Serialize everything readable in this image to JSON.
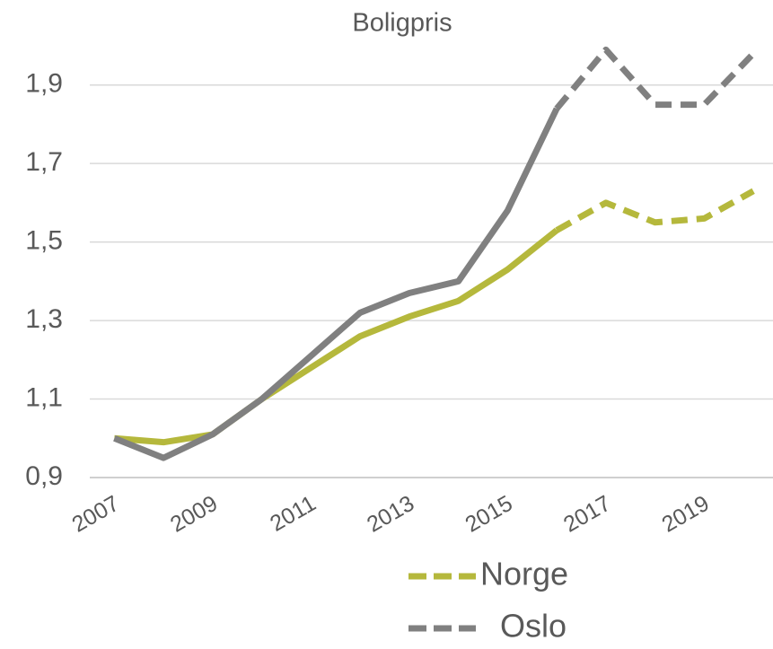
{
  "chart_data": {
    "type": "line",
    "title": "Boligpris",
    "x": [
      2007,
      2008,
      2009,
      2010,
      2011,
      2012,
      2013,
      2014,
      2015,
      2016,
      2017,
      2018,
      2019,
      2020
    ],
    "xlim": [
      2006.5,
      2020.4
    ],
    "xticks": [
      2007,
      2009,
      2011,
      2013,
      2015,
      2017,
      2019
    ],
    "ylim": [
      0.9,
      2.0
    ],
    "yticks": [
      {
        "value": 0.9,
        "label": "0,9"
      },
      {
        "value": 1.1,
        "label": "1,1"
      },
      {
        "value": 1.3,
        "label": "1,3"
      },
      {
        "value": 1.5,
        "label": "1,5"
      },
      {
        "value": 1.7,
        "label": "1,7"
      },
      {
        "value": 1.9,
        "label": "1,9"
      }
    ],
    "grid": true,
    "dashed_from": 2016,
    "legend": "bottom",
    "series": [
      {
        "name": "Norge",
        "color": "#b5b83c",
        "values": [
          1.0,
          0.99,
          1.01,
          1.1,
          1.18,
          1.26,
          1.31,
          1.35,
          1.43,
          1.53,
          1.6,
          1.55,
          1.56,
          1.63
        ]
      },
      {
        "name": "Oslo",
        "color": "#808080",
        "values": [
          1.0,
          0.95,
          1.01,
          1.1,
          1.21,
          1.32,
          1.37,
          1.4,
          1.58,
          1.84,
          1.99,
          1.85,
          1.85,
          1.98
        ]
      }
    ]
  }
}
